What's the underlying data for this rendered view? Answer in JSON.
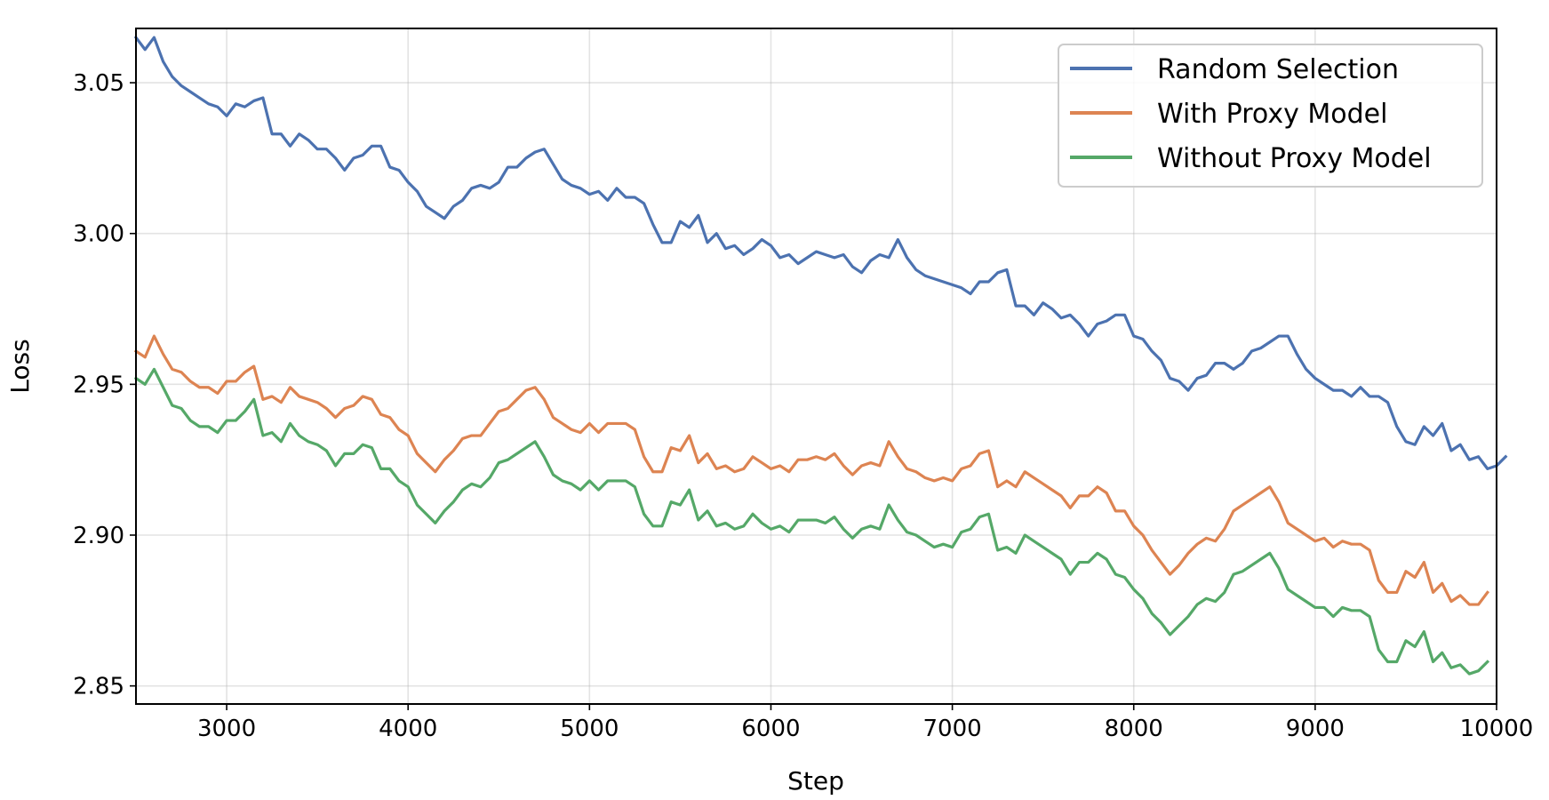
{
  "chart_data": {
    "type": "line",
    "title": "",
    "xlabel": "Step",
    "ylabel": "Loss",
    "xlim": [
      2500,
      10000
    ],
    "ylim": [
      2.844,
      3.068
    ],
    "xticks": [
      3000,
      4000,
      5000,
      6000,
      7000,
      8000,
      9000,
      10000
    ],
    "xtick_labels": [
      "3000",
      "4000",
      "5000",
      "6000",
      "7000",
      "8000",
      "9000",
      "10000"
    ],
    "yticks": [
      2.85,
      2.9,
      2.95,
      3.0,
      3.05
    ],
    "ytick_labels": [
      "2.85",
      "2.90",
      "2.95",
      "3.00",
      "3.05"
    ],
    "grid": true,
    "legend_position": "top-right",
    "x_start": 2500,
    "x_step": 50,
    "series": [
      {
        "name": "Random Selection",
        "color": "#4c72b0",
        "values": [
          3.065,
          3.061,
          3.065,
          3.057,
          3.052,
          3.049,
          3.047,
          3.045,
          3.043,
          3.042,
          3.039,
          3.043,
          3.042,
          3.044,
          3.045,
          3.033,
          3.033,
          3.029,
          3.033,
          3.031,
          3.028,
          3.028,
          3.025,
          3.021,
          3.025,
          3.026,
          3.029,
          3.029,
          3.022,
          3.021,
          3.017,
          3.014,
          3.009,
          3.007,
          3.005,
          3.009,
          3.011,
          3.015,
          3.016,
          3.015,
          3.017,
          3.022,
          3.022,
          3.025,
          3.027,
          3.028,
          3.023,
          3.018,
          3.016,
          3.015,
          3.013,
          3.014,
          3.011,
          3.015,
          3.012,
          3.012,
          3.01,
          3.003,
          2.997,
          2.997,
          3.004,
          3.002,
          3.006,
          2.997,
          3.0,
          2.995,
          2.996,
          2.993,
          2.995,
          2.998,
          2.996,
          2.992,
          2.993,
          2.99,
          2.992,
          2.994,
          2.993,
          2.992,
          2.993,
          2.989,
          2.987,
          2.991,
          2.993,
          2.992,
          2.998,
          2.992,
          2.988,
          2.986,
          2.985,
          2.984,
          2.983,
          2.982,
          2.98,
          2.984,
          2.984,
          2.987,
          2.988,
          2.976,
          2.976,
          2.973,
          2.977,
          2.975,
          2.972,
          2.973,
          2.97,
          2.966,
          2.97,
          2.971,
          2.973,
          2.973,
          2.966,
          2.965,
          2.961,
          2.958,
          2.952,
          2.951,
          2.948,
          2.952,
          2.953,
          2.957,
          2.957,
          2.955,
          2.957,
          2.961,
          2.962,
          2.964,
          2.966,
          2.966,
          2.96,
          2.955,
          2.952,
          2.95,
          2.948,
          2.948,
          2.946,
          2.949,
          2.946,
          2.946,
          2.944,
          2.936,
          2.931,
          2.93,
          2.936,
          2.933,
          2.937,
          2.928,
          2.93,
          2.925,
          2.926,
          2.922,
          2.923,
          2.926
        ]
      },
      {
        "name": "With Proxy Model",
        "color": "#dd8452",
        "values": [
          2.961,
          2.959,
          2.966,
          2.96,
          2.955,
          2.954,
          2.951,
          2.949,
          2.949,
          2.947,
          2.951,
          2.951,
          2.954,
          2.956,
          2.945,
          2.946,
          2.944,
          2.949,
          2.946,
          2.945,
          2.944,
          2.942,
          2.939,
          2.942,
          2.943,
          2.946,
          2.945,
          2.94,
          2.939,
          2.935,
          2.933,
          2.927,
          2.924,
          2.921,
          2.925,
          2.928,
          2.932,
          2.933,
          2.933,
          2.937,
          2.941,
          2.942,
          2.945,
          2.948,
          2.949,
          2.945,
          2.939,
          2.937,
          2.935,
          2.934,
          2.937,
          2.934,
          2.937,
          2.937,
          2.937,
          2.935,
          2.926,
          2.921,
          2.921,
          2.929,
          2.928,
          2.933,
          2.924,
          2.927,
          2.922,
          2.923,
          2.921,
          2.922,
          2.926,
          2.924,
          2.922,
          2.923,
          2.921,
          2.925,
          2.925,
          2.926,
          2.925,
          2.927,
          2.923,
          2.92,
          2.923,
          2.924,
          2.923,
          2.931,
          2.926,
          2.922,
          2.921,
          2.919,
          2.918,
          2.919,
          2.918,
          2.922,
          2.923,
          2.927,
          2.928,
          2.916,
          2.918,
          2.916,
          2.921,
          2.919,
          2.917,
          2.915,
          2.913,
          2.909,
          2.913,
          2.913,
          2.916,
          2.914,
          2.908,
          2.908,
          2.903,
          2.9,
          2.895,
          2.891,
          2.887,
          2.89,
          2.894,
          2.897,
          2.899,
          2.898,
          2.902,
          2.908,
          2.91,
          2.912,
          2.914,
          2.916,
          2.911,
          2.904,
          2.902,
          2.9,
          2.898,
          2.899,
          2.896,
          2.898,
          2.897,
          2.897,
          2.895,
          2.885,
          2.881,
          2.881,
          2.888,
          2.886,
          2.891,
          2.881,
          2.884,
          2.878,
          2.88,
          2.877,
          2.877,
          2.881
        ]
      },
      {
        "name": "Without Proxy Model",
        "color": "#55a868",
        "values": [
          2.952,
          2.95,
          2.955,
          2.949,
          2.943,
          2.942,
          2.938,
          2.936,
          2.936,
          2.934,
          2.938,
          2.938,
          2.941,
          2.945,
          2.933,
          2.934,
          2.931,
          2.937,
          2.933,
          2.931,
          2.93,
          2.928,
          2.923,
          2.927,
          2.927,
          2.93,
          2.929,
          2.922,
          2.922,
          2.918,
          2.916,
          2.91,
          2.907,
          2.904,
          2.908,
          2.911,
          2.915,
          2.917,
          2.916,
          2.919,
          2.924,
          2.925,
          2.927,
          2.929,
          2.931,
          2.926,
          2.92,
          2.918,
          2.917,
          2.915,
          2.918,
          2.915,
          2.918,
          2.918,
          2.918,
          2.916,
          2.907,
          2.903,
          2.903,
          2.911,
          2.91,
          2.915,
          2.905,
          2.908,
          2.903,
          2.904,
          2.902,
          2.903,
          2.907,
          2.904,
          2.902,
          2.903,
          2.901,
          2.905,
          2.905,
          2.905,
          2.904,
          2.906,
          2.902,
          2.899,
          2.902,
          2.903,
          2.902,
          2.91,
          2.905,
          2.901,
          2.9,
          2.898,
          2.896,
          2.897,
          2.896,
          2.901,
          2.902,
          2.906,
          2.907,
          2.895,
          2.896,
          2.894,
          2.9,
          2.898,
          2.896,
          2.894,
          2.892,
          2.887,
          2.891,
          2.891,
          2.894,
          2.892,
          2.887,
          2.886,
          2.882,
          2.879,
          2.874,
          2.871,
          2.867,
          2.87,
          2.873,
          2.877,
          2.879,
          2.878,
          2.881,
          2.887,
          2.888,
          2.89,
          2.892,
          2.894,
          2.889,
          2.882,
          2.88,
          2.878,
          2.876,
          2.876,
          2.873,
          2.876,
          2.875,
          2.875,
          2.873,
          2.862,
          2.858,
          2.858,
          2.865,
          2.863,
          2.868,
          2.858,
          2.861,
          2.856,
          2.857,
          2.854,
          2.855,
          2.858
        ]
      }
    ]
  }
}
